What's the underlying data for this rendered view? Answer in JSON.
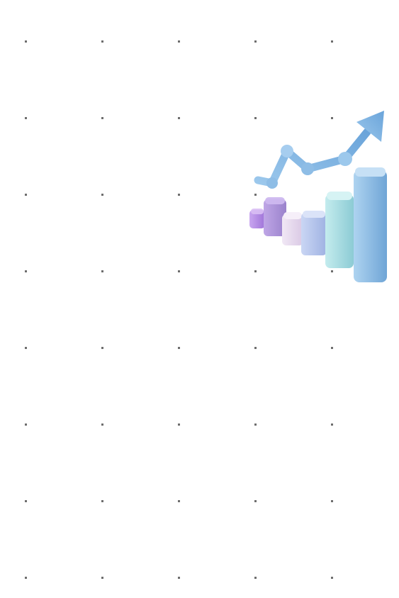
{
  "background": {
    "color": "#ffffff",
    "dot_color": "#6e6e6e",
    "dot_grid": {
      "columns": 5,
      "rows": 8
    }
  },
  "illustration": {
    "icon": "3d-growth-chart-with-rising-arrow-icon",
    "bar_colors": [
      "#b58be6",
      "#a88fd6",
      "#e4d7ec",
      "#b4c4ec",
      "#a6dce2",
      "#8ec0e6"
    ],
    "arrow_color": "#8ebde6"
  }
}
